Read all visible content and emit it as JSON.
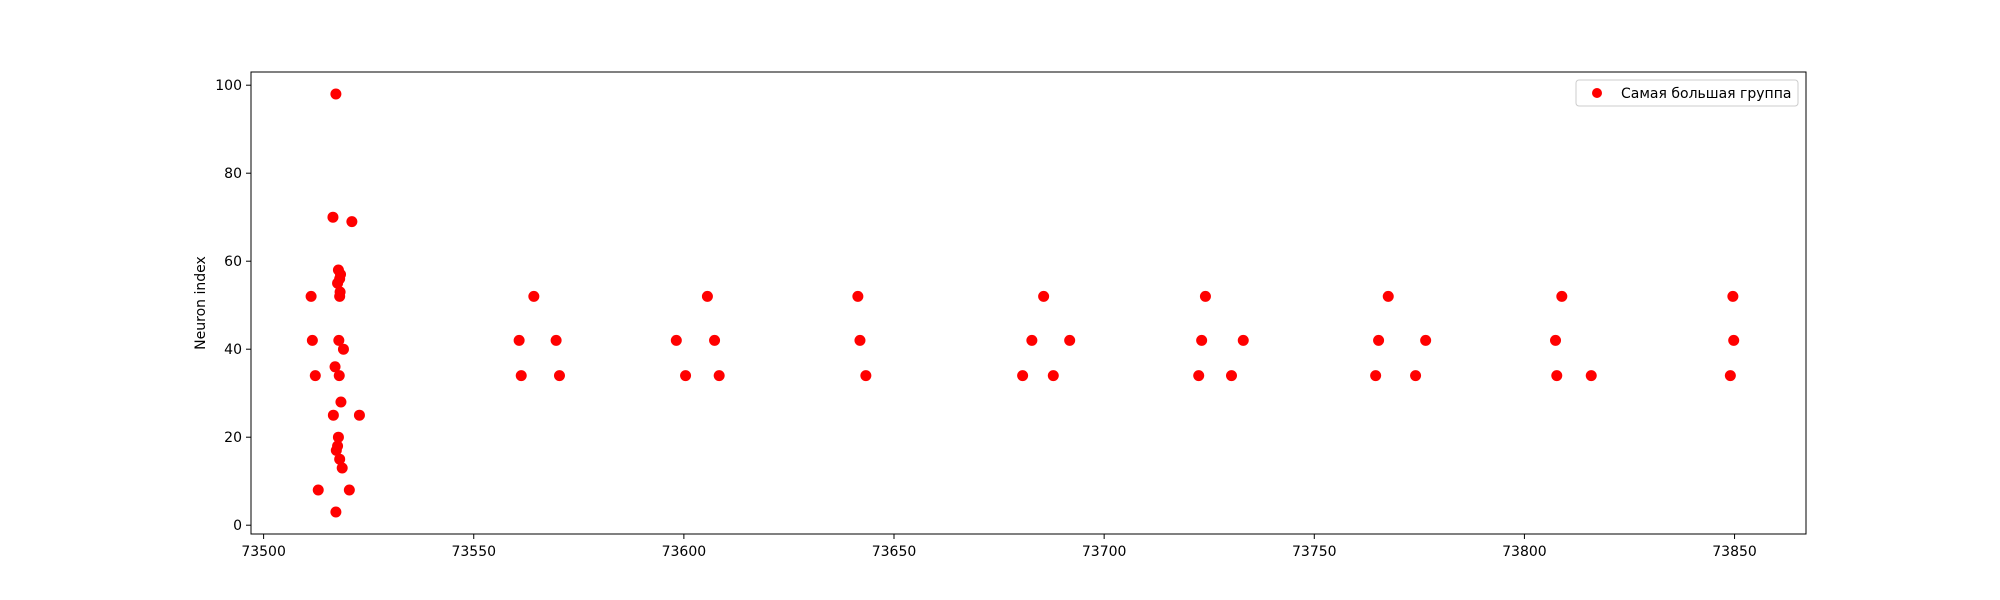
{
  "chart_data": {
    "type": "scatter",
    "title": "",
    "xlabel": "",
    "ylabel": "Neuron index",
    "xlim": [
      73497,
      73867
    ],
    "ylim": [
      -2,
      103
    ],
    "xticks": [
      73500,
      73550,
      73600,
      73650,
      73700,
      73750,
      73800,
      73850
    ],
    "yticks": [
      0,
      20,
      40,
      60,
      80,
      100
    ],
    "grid": false,
    "legend": {
      "position": "top-right"
    },
    "colors": {
      "marker": "#ff0000",
      "axes": "#000000"
    },
    "series": [
      {
        "name": "Самая большая группа",
        "points": [
          [
            73517.2,
            98
          ],
          [
            73516.5,
            70
          ],
          [
            73521,
            69
          ],
          [
            73511.3,
            52
          ],
          [
            73511.6,
            42
          ],
          [
            73512.3,
            34
          ],
          [
            73513,
            8
          ],
          [
            73517.8,
            58
          ],
          [
            73518.3,
            57
          ],
          [
            73518.1,
            56
          ],
          [
            73517.6,
            55
          ],
          [
            73518.2,
            53
          ],
          [
            73518.1,
            52
          ],
          [
            73517.9,
            42
          ],
          [
            73519,
            40
          ],
          [
            73517,
            36
          ],
          [
            73518,
            34
          ],
          [
            73518.4,
            28
          ],
          [
            73516.6,
            25
          ],
          [
            73522.8,
            25
          ],
          [
            73517.8,
            20
          ],
          [
            73517.6,
            18
          ],
          [
            73517.3,
            17
          ],
          [
            73518.1,
            15
          ],
          [
            73518.7,
            13
          ],
          [
            73520.4,
            8
          ],
          [
            73517.2,
            3
          ],
          [
            73564.3,
            52
          ],
          [
            73560.8,
            42
          ],
          [
            73561.3,
            34
          ],
          [
            73569.6,
            42
          ],
          [
            73570.4,
            34
          ],
          [
            73605.6,
            52
          ],
          [
            73598.2,
            42
          ],
          [
            73600.4,
            34
          ],
          [
            73607.3,
            42
          ],
          [
            73608.4,
            34
          ],
          [
            73641.4,
            52
          ],
          [
            73641.9,
            42
          ],
          [
            73643.3,
            34
          ],
          [
            73685.6,
            52
          ],
          [
            73682.8,
            42
          ],
          [
            73680.6,
            34
          ],
          [
            73687.9,
            34
          ],
          [
            73691.8,
            42
          ],
          [
            73724.1,
            52
          ],
          [
            73723.2,
            42
          ],
          [
            73722.5,
            34
          ],
          [
            73730.3,
            34
          ],
          [
            73733.1,
            42
          ],
          [
            73767.6,
            52
          ],
          [
            73765.3,
            42
          ],
          [
            73764.6,
            34
          ],
          [
            73774.1,
            34
          ],
          [
            73776.5,
            42
          ],
          [
            73808.9,
            52
          ],
          [
            73807.4,
            42
          ],
          [
            73807.7,
            34
          ],
          [
            73815.9,
            34
          ],
          [
            73849.6,
            52
          ],
          [
            73849.8,
            42
          ],
          [
            73849,
            34
          ]
        ]
      }
    ]
  }
}
